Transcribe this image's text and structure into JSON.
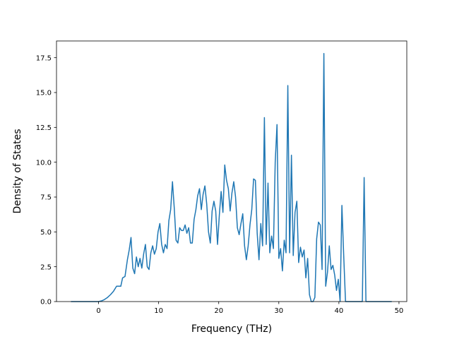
{
  "chart_data": {
    "type": "line",
    "title": "",
    "xlabel": "Frequency (THz)",
    "ylabel": "Density of States",
    "xlim": [
      -7.0,
      51.3
    ],
    "ylim": [
      0.0,
      18.7
    ],
    "xticks": [
      0,
      10,
      20,
      30,
      40,
      50
    ],
    "xtick_labels": [
      "0",
      "10",
      "20",
      "30",
      "40",
      "50"
    ],
    "yticks": [
      0.0,
      2.5,
      5.0,
      7.5,
      10.0,
      12.5,
      15.0,
      17.5
    ],
    "ytick_labels": [
      "0.0",
      "2.5",
      "5.0",
      "7.5",
      "10.0",
      "12.5",
      "15.0",
      "17.5"
    ],
    "grid": false,
    "legend": "none",
    "series": [
      {
        "color": "#1f77b4",
        "x": [
          -4.6,
          -3.0,
          -1.5,
          0.0,
          0.5,
          1.0,
          1.5,
          2.0,
          2.5,
          3.0,
          3.3,
          3.7,
          4.0,
          4.4,
          4.8,
          5.1,
          5.4,
          5.7,
          6.0,
          6.3,
          6.6,
          6.9,
          7.2,
          7.5,
          7.8,
          8.1,
          8.4,
          8.7,
          9.0,
          9.3,
          9.6,
          9.9,
          10.2,
          10.5,
          10.8,
          11.1,
          11.4,
          11.7,
          12.0,
          12.3,
          12.6,
          12.9,
          13.2,
          13.5,
          13.8,
          14.1,
          14.4,
          14.7,
          15.0,
          15.3,
          15.6,
          15.9,
          16.2,
          16.5,
          16.8,
          17.1,
          17.4,
          17.7,
          18.0,
          18.3,
          18.6,
          18.9,
          19.2,
          19.5,
          19.8,
          20.1,
          20.4,
          20.7,
          21.0,
          21.3,
          21.6,
          21.9,
          22.2,
          22.5,
          22.8,
          23.1,
          23.4,
          23.7,
          24.0,
          24.3,
          24.6,
          24.9,
          25.2,
          25.5,
          25.8,
          26.1,
          26.4,
          26.7,
          27.0,
          27.3,
          27.6,
          27.9,
          28.2,
          28.5,
          28.8,
          29.1,
          29.4,
          29.7,
          30.0,
          30.3,
          30.6,
          30.9,
          31.2,
          31.5,
          31.8,
          32.1,
          32.4,
          32.7,
          33.0,
          33.3,
          33.6,
          33.9,
          34.2,
          34.5,
          34.8,
          35.1,
          35.4,
          35.7,
          36.0,
          36.3,
          36.6,
          36.9,
          37.2,
          37.5,
          37.8,
          38.1,
          38.4,
          38.7,
          39.0,
          39.3,
          39.6,
          39.9,
          40.2,
          40.5,
          40.8,
          41.1,
          41.4,
          41.7,
          42.0,
          42.5,
          43.0,
          43.5,
          43.9,
          44.2,
          44.5,
          44.8,
          45.1,
          46.0,
          47.0,
          48.0,
          48.8
        ],
        "y": [
          0,
          0,
          0,
          0,
          0.05,
          0.15,
          0.3,
          0.5,
          0.75,
          1.1,
          1.1,
          1.1,
          1.7,
          1.8,
          3.0,
          3.7,
          4.6,
          2.4,
          2.0,
          3.2,
          2.5,
          3.1,
          2.4,
          3.4,
          4.1,
          2.5,
          2.3,
          3.5,
          4.0,
          3.4,
          3.8,
          5.0,
          5.6,
          4.1,
          3.5,
          4.1,
          3.8,
          5.8,
          6.6,
          8.6,
          6.7,
          4.4,
          4.2,
          5.3,
          5.1,
          5.1,
          5.5,
          4.9,
          5.3,
          4.2,
          4.2,
          5.9,
          6.6,
          7.6,
          8.1,
          6.6,
          7.7,
          8.3,
          7.0,
          5.0,
          4.2,
          6.5,
          7.2,
          6.5,
          4.1,
          6.2,
          7.9,
          6.4,
          9.8,
          8.7,
          8.1,
          6.5,
          7.8,
          8.6,
          7.5,
          5.3,
          4.8,
          5.6,
          6.3,
          4.0,
          3.0,
          4.0,
          5.5,
          6.6,
          8.8,
          8.7,
          4.9,
          3.0,
          5.6,
          4.0,
          13.2,
          4.1,
          8.5,
          3.5,
          4.7,
          3.8,
          10.0,
          12.7,
          3.1,
          3.8,
          2.2,
          4.4,
          3.5,
          15.5,
          3.5,
          10.5,
          3.3,
          6.4,
          7.2,
          2.8,
          3.9,
          3.2,
          3.7,
          1.7,
          3.1,
          0.5,
          0,
          0,
          0.3,
          4.5,
          5.7,
          5.5,
          2.3,
          17.8,
          1.1,
          2.1,
          4.0,
          2.3,
          2.6,
          1.9,
          0.8,
          1.6,
          0,
          6.9,
          3.3,
          0,
          0,
          0,
          0,
          0,
          0,
          0,
          0,
          8.9,
          0,
          0,
          0,
          0,
          0,
          0,
          0
        ]
      }
    ]
  }
}
